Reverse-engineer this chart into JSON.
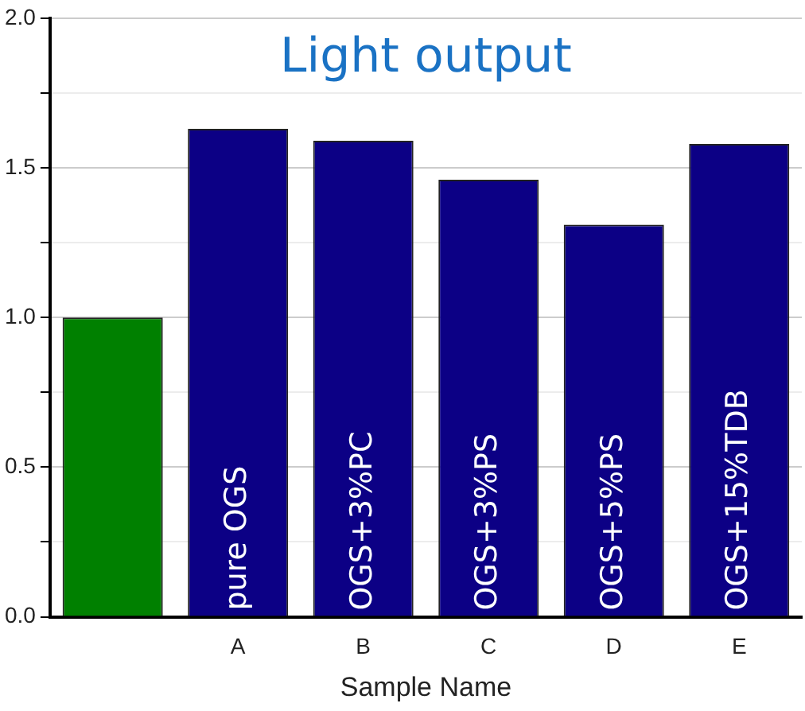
{
  "chart_data": {
    "type": "bar",
    "title": "Light output",
    "xlabel": "Sample Name",
    "categories": [
      null,
      "A",
      "B",
      "C",
      "D",
      "E"
    ],
    "values": [
      1.0,
      1.63,
      1.59,
      1.46,
      1.31,
      1.58
    ],
    "colors": [
      "#008000",
      "#0c0085",
      "#0c0085",
      "#0c0085",
      "#0c0085",
      "#0c0085"
    ],
    "ylim": [
      0,
      2
    ],
    "yticks": [
      {
        "value": 0,
        "label": "0.0"
      },
      {
        "value": 0.25,
        "label": null
      },
      0.5,
      {
        "value": 0.75,
        "label": null
      },
      {
        "value": 1,
        "label": "1.0"
      },
      {
        "value": 1.25,
        "label": null
      },
      1.5,
      {
        "value": 1.75,
        "label": null
      },
      {
        "value": 2,
        "label": "2.0"
      }
    ],
    "grid": "y",
    "annotations": [
      {
        "text": "pure OGS",
        "x": "A",
        "y": 0
      },
      {
        "text": "OGS+3%PC",
        "x": "B",
        "y": 0
      },
      {
        "text": "OGS+3%PS",
        "x": "C",
        "y": 0
      },
      {
        "text": "OGS+5%PS",
        "x": "D",
        "y": 0
      },
      {
        "text": "OGS+15%TDB",
        "x": "E",
        "y": 0
      }
    ]
  }
}
